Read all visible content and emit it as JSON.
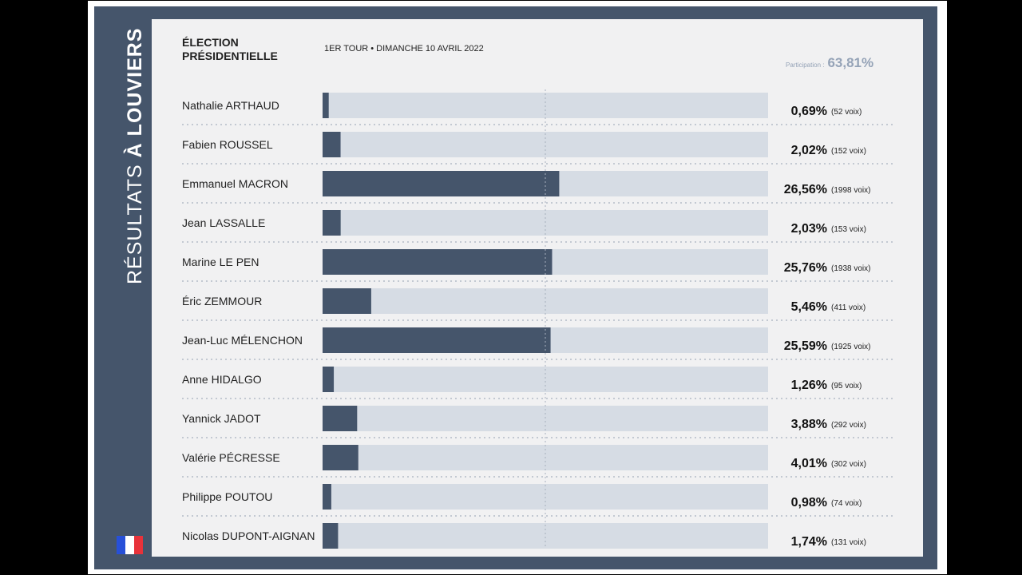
{
  "sidebar": {
    "title_light": "RÉSULTATS",
    "title_bold": "À LOUVIERS",
    "flag": {
      "blue": "#2750d8",
      "white": "#ffffff",
      "red": "#e8323a"
    }
  },
  "header": {
    "title": "ÉLECTION PRÉSIDENTIELLE",
    "subtitle": "1ER TOUR • DIMANCHE 10 AVRIL 2022",
    "participation_label": "Participation :",
    "participation_value": "63,81%"
  },
  "colors": {
    "bar": "#45556b",
    "track": "#d6dce4",
    "frame": "#45556b",
    "accent": "#95a3b7"
  },
  "chart_data": {
    "type": "bar",
    "orientation": "horizontal",
    "xlim": [
      0,
      50
    ],
    "grid": false,
    "categories": [
      "Nathalie ARTHAUD",
      "Fabien ROUSSEL",
      "Emmanuel MACRON",
      "Jean LASSALLE",
      "Marine LE PEN",
      "Éric ZEMMOUR",
      "Jean-Luc MÉLENCHON",
      "Anne HIDALGO",
      "Yannick JADOT",
      "Valérie PÉCRESSE",
      "Philippe POUTOU",
      "Nicolas DUPONT-AIGNAN"
    ],
    "values": [
      0.69,
      2.02,
      26.56,
      2.03,
      25.76,
      5.46,
      25.59,
      1.26,
      3.88,
      4.01,
      0.98,
      1.74
    ],
    "percent_labels": [
      "0,69%",
      "2,02%",
      "26,56%",
      "2,03%",
      "25,76%",
      "5,46%",
      "25,59%",
      "1,26%",
      "3,88%",
      "4,01%",
      "0,98%",
      "1,74%"
    ],
    "votes": [
      52,
      152,
      1998,
      153,
      1938,
      411,
      1925,
      95,
      292,
      302,
      74,
      131
    ],
    "vote_labels": [
      "(52 voix)",
      "(152 voix)",
      "(1998 voix)",
      "(153 voix)",
      "(1938 voix)",
      "(411 voix)",
      "(1925 voix)",
      "(95 voix)",
      "(292 voix)",
      "(302 voix)",
      "(74 voix)",
      "(131 voix)"
    ]
  }
}
